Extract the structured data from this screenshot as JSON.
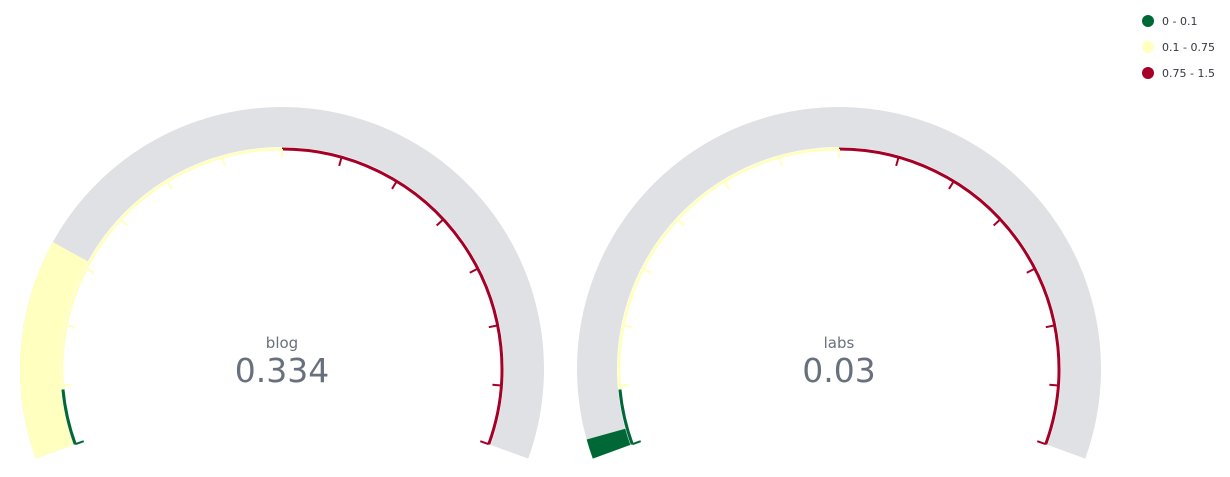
{
  "chart_data": {
    "type": "gauge",
    "min": 0,
    "max": 1.5,
    "ranges": [
      {
        "label": "0 - 0.1",
        "from": 0,
        "to": 0.1,
        "color": "#006837"
      },
      {
        "label": "0.1 - 0.75",
        "from": 0.1,
        "to": 0.75,
        "color": "#ffffbf"
      },
      {
        "label": "0.75 - 1.5",
        "from": 0.75,
        "to": 1.5,
        "color": "#a50026"
      }
    ],
    "gauges": [
      {
        "label": "blog",
        "value": 0.334,
        "value_text": "0.334"
      },
      {
        "label": "labs",
        "value": 0.03,
        "value_text": "0.03"
      }
    ],
    "track_color": "#e0e1e5",
    "legend_position": "top-right"
  }
}
